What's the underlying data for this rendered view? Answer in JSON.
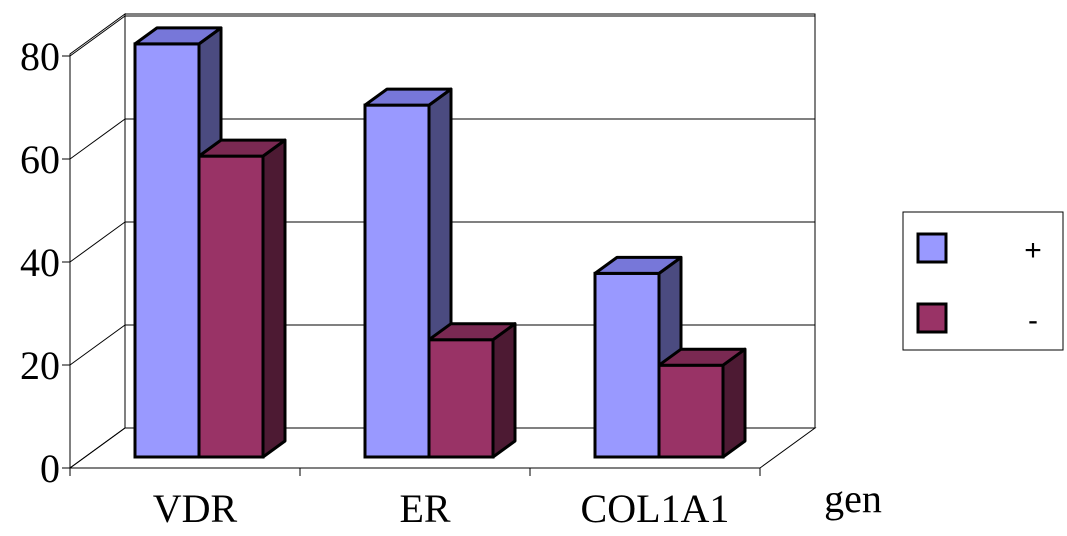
{
  "chart_data": {
    "type": "bar",
    "style": "3d-clustered-column",
    "categories": [
      "VDR",
      "ER",
      "COL1A1"
    ],
    "series": [
      {
        "name": "+",
        "values": [
          81,
          69,
          36
        ],
        "color": "#9999ff",
        "side_color": "#4b4b80",
        "top_color": "#7777d9"
      },
      {
        "name": "-",
        "values": [
          59,
          23,
          18
        ],
        "color": "#993366",
        "side_color": "#4d1a33",
        "top_color": "#7a2952"
      }
    ],
    "title": "",
    "xlabel": "gen",
    "ylabel": "",
    "ylim": [
      0,
      80
    ],
    "yticks": [
      "0",
      "20",
      "40",
      "60",
      "80"
    ],
    "grid": true,
    "legend_position": "right"
  }
}
